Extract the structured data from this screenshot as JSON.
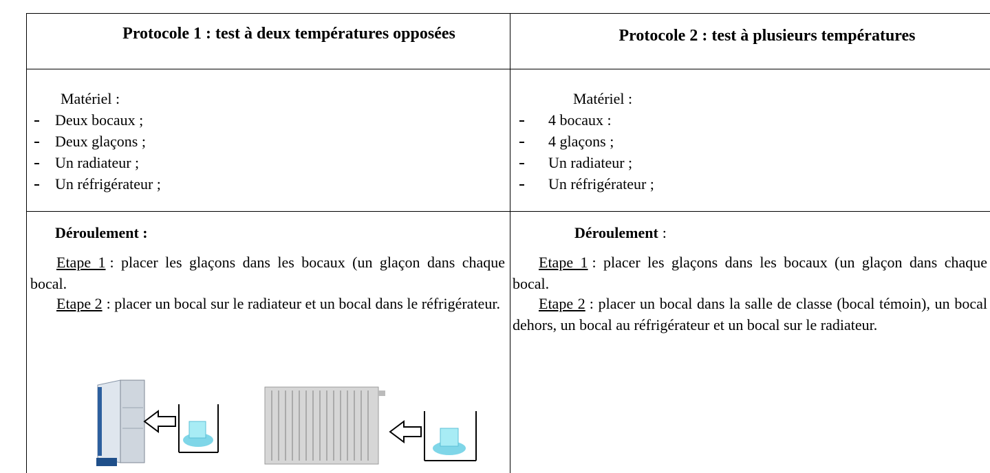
{
  "table": {
    "columns": [
      {
        "header": "Protocole 1 : test à deux températures opposées",
        "materiel_title": "Matériel :",
        "materiel": [
          "Deux bocaux ;",
          "Deux glaçons ;",
          "Un radiateur ;",
          "Un réfrigérateur ;"
        ],
        "deroulement_title": "Déroulement :",
        "steps": [
          {
            "label": "Etape 1",
            "text": ": placer les glaçons dans les bocaux (un glaçon dans chaque bocal."
          },
          {
            "label": "Etape 2",
            "text": ": placer un bocal sur le radiateur et un bocal dans le réfrigérateur."
          }
        ]
      },
      {
        "header": "Protocole 2 : test à plusieurs températures",
        "materiel_title": "Matériel :",
        "materiel": [
          "4 bocaux :",
          "4 glaçons ;",
          "Un radiateur ;",
          "Un réfrigérateur ;"
        ],
        "deroulement_title": "Déroulement",
        "deroulement_suffix": ":",
        "steps": [
          {
            "label": "Etape 1",
            "text": ": placer les glaçons dans les bocaux (un glaçon dans chaque bocal."
          },
          {
            "label": "Etape 2",
            "text": ": placer un bocal dans la salle de classe (bocal témoin), un bocal dehors, un bocal au réfrigérateur et un bocal sur le radiateur."
          }
        ]
      }
    ]
  }
}
